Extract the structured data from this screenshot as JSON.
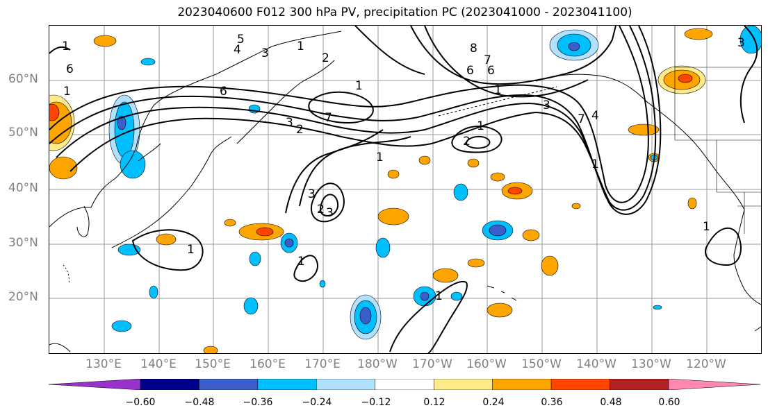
{
  "title": "2023040600 F012 300 hPa PV, precipitation PC (2023041000 - 2023041100)",
  "lat_labels": [
    "60°N",
    "50°N",
    "40°N",
    "30°N",
    "20°N"
  ],
  "lon_labels": [
    "130°E",
    "140°E",
    "150°E",
    "160°E",
    "170°E",
    "180°W",
    "170°W",
    "160°W",
    "150°W",
    "140°W",
    "130°W",
    "120°W"
  ],
  "contour_labels": [
    "6",
    "6",
    "1",
    "2",
    "3",
    "4",
    "5",
    "7",
    "6",
    "8",
    "6",
    "7",
    "3",
    "2",
    "1",
    "3",
    "1",
    "2",
    "1",
    "1",
    "1",
    "1",
    "2",
    "3",
    "1",
    "1",
    "1",
    "1",
    "7",
    "4",
    "3",
    "3",
    "1"
  ],
  "colorbar": {
    "ticks": [
      "−0.60",
      "−0.48",
      "−0.36",
      "−0.24",
      "−0.12",
      "0.12",
      "0.24",
      "0.36",
      "0.48",
      "0.60"
    ],
    "colors": [
      "#9932cc",
      "#00008b",
      "#3a5fcd",
      "#00bfff",
      "#b0e2ff",
      "#ffffff",
      "#ffea8a",
      "#ffa500",
      "#ff4500",
      "#b22222",
      "#ff88b0"
    ]
  }
}
